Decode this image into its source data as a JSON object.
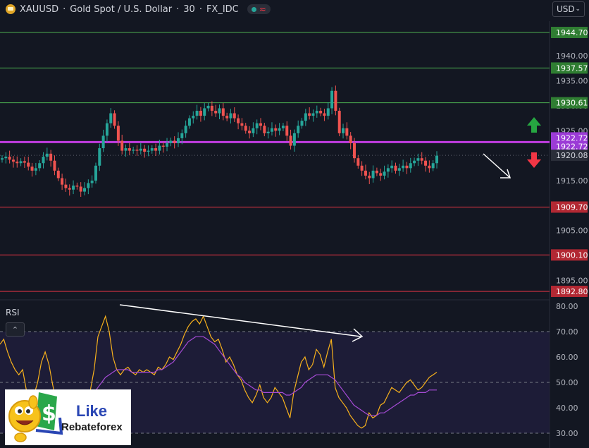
{
  "header": {
    "symbol": "XAUUSD",
    "description": "Gold Spot / U.S. Dollar",
    "interval": "30",
    "source": "FX_IDC",
    "title_sep": " · ",
    "status_icon": "wave-icon"
  },
  "currency": {
    "value": "USD",
    "icon": "chevron-down-icon"
  },
  "rsi_panel": {
    "label": "RSI",
    "collapse_icon": "chevron-up-icon"
  },
  "logo": {
    "word1": "Like",
    "word2": "Rebateforex"
  },
  "colors": {
    "background": "#131722",
    "up": "#26a69a",
    "down": "#ef5350",
    "support_line": "#f23645",
    "resistance_line": "#4caf50",
    "pivot_line": "#c13ce0",
    "rsi_line": "#f7b11c",
    "rsi_ma": "#a64bd6",
    "arrow_up": "#26a641",
    "arrow_down": "#f23645"
  },
  "chart_data": [
    {
      "type": "candlestick",
      "title": "XAUUSD · Gold Spot / U.S. Dollar · 30 · FX_IDC",
      "y_ticks": [
        1895.0,
        1900.0,
        1905.0,
        1910.0,
        1915.0,
        1920.0,
        1925.0,
        1930.0,
        1935.0,
        1940.0
      ],
      "ylim": [
        1891,
        1946
      ],
      "last_price": 1920.08,
      "levels": [
        {
          "value": 1944.7,
          "label": "1944.70",
          "kind": "resistance"
        },
        {
          "value": 1937.57,
          "label": "1937.57",
          "kind": "resistance"
        },
        {
          "value": 1930.61,
          "label": "1930.61",
          "kind": "resistance"
        },
        {
          "value": 1922.72,
          "label": "1922.72",
          "kind": "pivot"
        },
        {
          "value": 1909.7,
          "label": "1909.70",
          "kind": "support"
        },
        {
          "value": 1900.1,
          "label": "1900.10",
          "kind": "support"
        },
        {
          "value": 1892.8,
          "label": "1892.80",
          "kind": "support"
        }
      ],
      "close_path": [
        1919.5,
        1919.8,
        1919.2,
        1918.8,
        1918.5,
        1918.9,
        1918.6,
        1917.8,
        1917.0,
        1917.5,
        1918.5,
        1919.8,
        1920.4,
        1919.0,
        1917.0,
        1915.5,
        1914.2,
        1913.5,
        1913.2,
        1914.0,
        1913.8,
        1912.8,
        1913.5,
        1914.5,
        1915.0,
        1918.0,
        1921.5,
        1924.0,
        1926.5,
        1928.5,
        1926.0,
        1923.0,
        1921.0,
        1921.5,
        1921.0,
        1921.2,
        1921.0,
        1921.4,
        1920.8,
        1921.0,
        1921.5,
        1921.0,
        1922.0,
        1921.8,
        1922.5,
        1923.0,
        1922.5,
        1923.5,
        1924.5,
        1926.0,
        1927.5,
        1928.0,
        1929.0,
        1928.0,
        1929.5,
        1930.0,
        1929.0,
        1928.5,
        1929.5,
        1928.0,
        1927.5,
        1928.5,
        1927.5,
        1926.5,
        1926.0,
        1925.0,
        1924.5,
        1925.5,
        1926.5,
        1926.0,
        1924.5,
        1924.8,
        1925.5,
        1925.0,
        1925.5,
        1926.0,
        1924.0,
        1922.0,
        1924.5,
        1926.0,
        1927.0,
        1928.5,
        1928.0,
        1928.5,
        1929.0,
        1928.5,
        1928.0,
        1929.5,
        1933.0,
        1929.0,
        1924.5,
        1925.5,
        1924.0,
        1922.5,
        1919.5,
        1918.0,
        1917.0,
        1916.0,
        1915.5,
        1917.0,
        1916.5,
        1916.0,
        1916.8,
        1917.5,
        1918.0,
        1917.0,
        1917.5,
        1918.0,
        1917.5,
        1918.5,
        1919.0,
        1919.5,
        1919.0,
        1918.0,
        1917.5,
        1918.5,
        1920.0
      ]
    },
    {
      "type": "line",
      "title": "RSI",
      "y_ticks": [
        30.0,
        40.0,
        50.0,
        60.0,
        70.0,
        80.0
      ],
      "ylim": [
        28,
        81
      ],
      "bands": [
        30,
        50,
        70
      ],
      "series": [
        {
          "role": "rsi",
          "values": [
            65,
            67,
            62,
            58,
            55,
            53,
            55,
            47,
            42,
            45,
            50,
            58,
            62,
            57,
            49,
            42,
            40,
            37,
            38,
            40,
            38,
            36,
            39,
            43,
            47,
            55,
            68,
            72,
            76,
            70,
            60,
            55,
            53,
            55,
            56,
            54,
            53,
            55,
            54,
            55,
            54,
            53,
            56,
            55,
            57,
            60,
            59,
            62,
            65,
            69,
            72,
            74,
            75,
            73,
            76,
            72,
            68,
            66,
            67,
            63,
            58,
            60,
            57,
            53,
            51,
            47,
            44,
            42,
            45,
            49,
            44,
            42,
            44,
            48,
            46,
            44,
            40,
            36,
            46,
            52,
            58,
            60,
            55,
            57,
            63,
            61,
            56,
            62,
            67,
            48,
            44,
            42,
            40,
            37,
            35,
            33,
            32,
            33,
            38,
            36,
            37,
            41,
            42,
            45,
            48,
            47,
            46,
            48,
            50,
            51,
            49,
            47,
            48,
            50,
            52,
            53,
            54
          ]
        },
        {
          "role": "ma",
          "values": [
            null,
            null,
            null,
            null,
            null,
            null,
            null,
            null,
            null,
            null,
            null,
            null,
            null,
            null,
            null,
            null,
            null,
            null,
            null,
            null,
            47,
            46,
            45,
            45,
            45,
            46,
            48,
            50,
            52,
            53,
            54,
            55,
            55,
            55,
            55,
            54,
            54,
            54,
            54,
            54,
            54,
            54,
            55,
            55,
            56,
            57,
            58,
            60,
            62,
            64,
            66,
            67,
            68,
            68,
            68,
            67,
            66,
            65,
            63,
            61,
            59,
            57,
            55,
            53,
            52,
            50,
            49,
            48,
            47,
            47,
            46,
            46,
            46,
            46,
            46,
            46,
            45,
            45,
            46,
            47,
            48,
            50,
            51,
            52,
            53,
            53,
            53,
            53,
            52,
            51,
            49,
            47,
            45,
            43,
            41,
            40,
            39,
            38,
            37,
            37,
            37,
            38,
            38,
            39,
            40,
            41,
            42,
            43,
            44,
            45,
            45,
            46,
            46,
            46,
            47,
            47,
            47
          ]
        }
      ]
    }
  ]
}
